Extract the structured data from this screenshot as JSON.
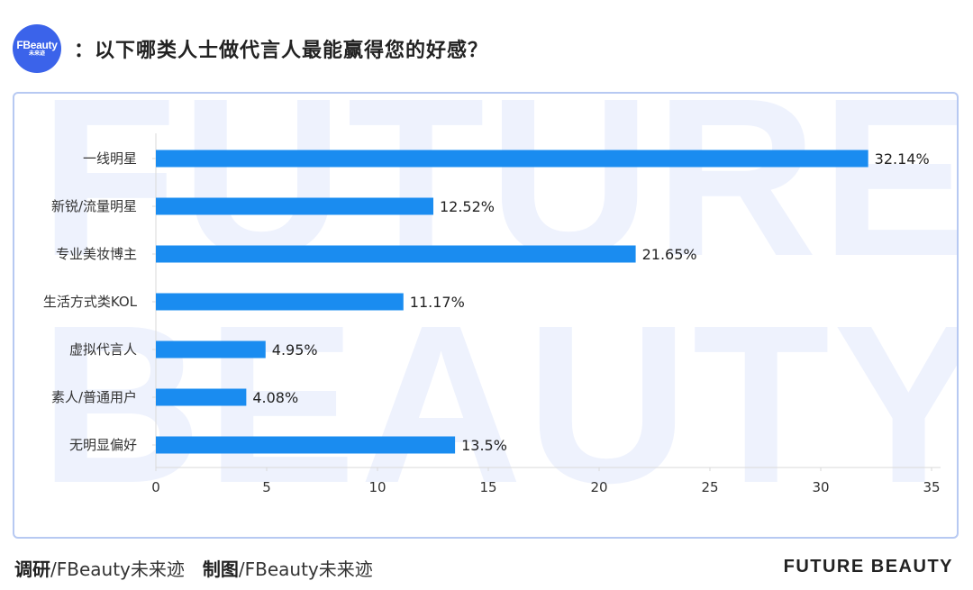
{
  "header": {
    "logo_text": "FBeauty",
    "logo_subtext": "未来迹",
    "question": "：以下哪类人士做代言人最能赢得您的好感？"
  },
  "watermark": {
    "line1": "FUTURE",
    "line2": "BEAUTY"
  },
  "footer": {
    "survey_label": "调研",
    "survey_value": "/FBeauty未来迹",
    "chart_label": "制图",
    "chart_value": "/FBeauty未来迹",
    "brand": "FUTURE BEAUTY"
  },
  "colors": {
    "bar": "#1a8cf0",
    "logo": "#3b63ea",
    "panel_border": "#b7c9f2",
    "watermark": "#eef2fd"
  },
  "chart_data": {
    "type": "bar",
    "orientation": "horizontal",
    "categories": [
      "一线明星",
      "新锐/流量明星",
      "专业美妆博主",
      "生活方式类KOL",
      "虚拟代言人",
      "素人/普通用户",
      "无明显偏好"
    ],
    "values": [
      32.14,
      12.52,
      21.65,
      11.17,
      4.95,
      4.08,
      13.5
    ],
    "value_labels": [
      "32.14%",
      "12.52%",
      "21.65%",
      "11.17%",
      "4.95%",
      "4.08%",
      "13.5%"
    ],
    "xlim": [
      0,
      35
    ],
    "xticks": [
      0,
      5,
      10,
      15,
      20,
      25,
      30,
      35
    ],
    "grid": false
  }
}
